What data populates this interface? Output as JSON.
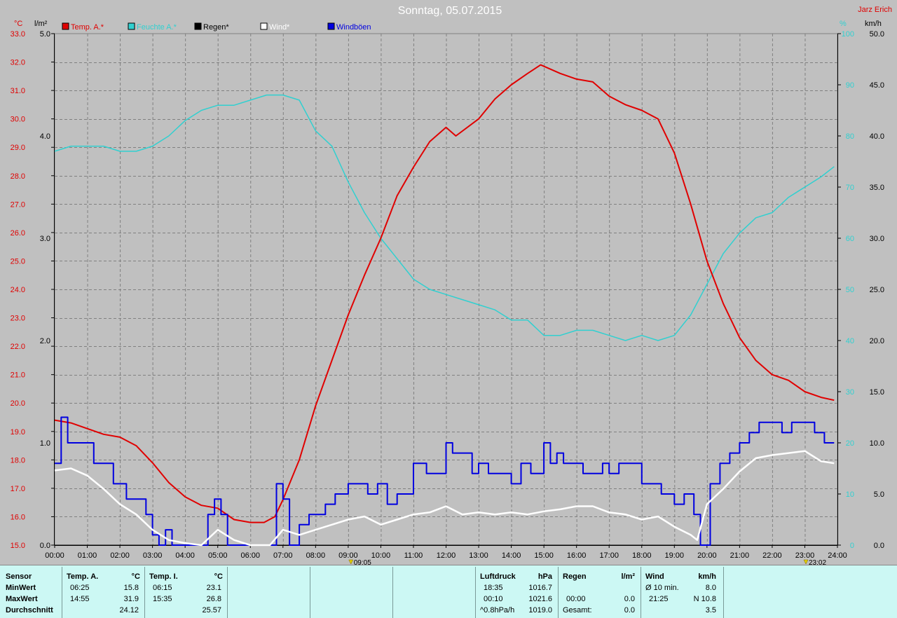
{
  "header": {
    "title": "Sonntag, 05.07.2015",
    "author": "Jarz Erich"
  },
  "colors": {
    "background": "#c0c0c0",
    "temp": "#e00000",
    "humidity": "#30d0d0",
    "rain": "#000000",
    "wind": "#ffffff",
    "gust": "#0000e0",
    "panel": "#ccf8f4"
  },
  "legend": [
    {
      "label": "Temp. A.*",
      "color": "#e00000"
    },
    {
      "label": "Feuchte A.*",
      "color": "#30d0d0"
    },
    {
      "label": "Regen*",
      "color": "#000000"
    },
    {
      "label": "Wind*",
      "color": "#ffffff"
    },
    {
      "label": "Windböen",
      "color": "#0000e0"
    }
  ],
  "axes": {
    "temp_unit": "°C",
    "rain_unit": "l/m²",
    "hum_unit": "%",
    "wind_unit": "km/h",
    "temp_ticks": [
      "15.0",
      "16.0",
      "17.0",
      "18.0",
      "19.0",
      "20.0",
      "21.0",
      "22.0",
      "23.0",
      "24.0",
      "25.0",
      "26.0",
      "27.0",
      "28.0",
      "29.0",
      "30.0",
      "31.0",
      "32.0",
      "33.0"
    ],
    "rain_ticks": [
      "0.0",
      "1.0",
      "2.0",
      "3.0",
      "4.0",
      "5.0"
    ],
    "hum_ticks": [
      "0",
      "10",
      "20",
      "30",
      "40",
      "50",
      "60",
      "70",
      "80",
      "90",
      "100"
    ],
    "wind_ticks": [
      "0.0",
      "5.0",
      "10.0",
      "15.0",
      "20.0",
      "25.0",
      "30.0",
      "35.0",
      "40.0",
      "45.0",
      "50.0"
    ],
    "time_ticks": [
      "00:00",
      "01:00",
      "02:00",
      "03:00",
      "04:00",
      "05:00",
      "06:00",
      "07:00",
      "08:00",
      "09:00",
      "10:00",
      "11:00",
      "12:00",
      "13:00",
      "14:00",
      "15:00",
      "16:00",
      "17:00",
      "18:00",
      "19:00",
      "20:00",
      "21:00",
      "22:00",
      "23:00",
      "24:00"
    ],
    "markers": [
      {
        "label": "09:05",
        "x": 9.083
      },
      {
        "label": "23:02",
        "x": 23.033
      }
    ]
  },
  "chart_data": {
    "type": "line",
    "title": "Sonntag, 05.07.2015",
    "x_label": "",
    "xlim": [
      0,
      24
    ],
    "ylim_temp": [
      15,
      33
    ],
    "ylim_rain": [
      0,
      5
    ],
    "ylim_hum": [
      0,
      100
    ],
    "ylim_wind": [
      0,
      50
    ],
    "grid": true,
    "legend_position": "top-left",
    "series": [
      {
        "name": "Temp. A.*",
        "axis": "temp",
        "x": [
          0,
          0.5,
          1,
          1.5,
          2,
          2.5,
          3,
          3.5,
          4,
          4.5,
          5,
          5.5,
          6,
          6.42,
          6.75,
          7,
          7.5,
          8,
          8.5,
          9,
          9.5,
          10,
          10.5,
          11,
          11.5,
          12,
          12.3,
          13,
          13.5,
          14,
          14.5,
          14.9,
          15.5,
          16,
          16.5,
          17,
          17.5,
          18,
          18.5,
          19,
          19.5,
          20,
          20.5,
          21,
          21.5,
          22,
          22.5,
          23,
          23.5,
          23.9
        ],
        "y": [
          19.4,
          19.3,
          19.1,
          18.9,
          18.8,
          18.5,
          17.9,
          17.2,
          16.7,
          16.4,
          16.3,
          15.9,
          15.8,
          15.8,
          16.0,
          16.6,
          18.0,
          19.9,
          21.5,
          23.1,
          24.5,
          25.8,
          27.3,
          28.3,
          29.2,
          29.7,
          29.4,
          30.0,
          30.7,
          31.2,
          31.6,
          31.9,
          31.6,
          31.4,
          31.3,
          30.8,
          30.5,
          30.3,
          30.0,
          28.8,
          27.0,
          25.0,
          23.5,
          22.3,
          21.5,
          21.0,
          20.8,
          20.4,
          20.2,
          20.1
        ]
      },
      {
        "name": "Feuchte A.*",
        "axis": "hum",
        "x": [
          0,
          0.5,
          1,
          1.5,
          2,
          2.5,
          3,
          3.5,
          4,
          4.5,
          5,
          5.5,
          6,
          6.5,
          7,
          7.5,
          8,
          8.5,
          9,
          9.5,
          10,
          10.5,
          11,
          11.5,
          12,
          12.5,
          13,
          13.5,
          14,
          14.5,
          15,
          15.5,
          16,
          16.5,
          17,
          17.5,
          18,
          18.5,
          19,
          19.5,
          20,
          20.5,
          21,
          21.5,
          22,
          22.5,
          23,
          23.5,
          23.9
        ],
        "y": [
          77,
          78,
          78,
          78,
          77,
          77,
          78,
          80,
          83,
          85,
          86,
          86,
          87,
          88,
          88,
          87,
          81,
          78,
          71,
          65,
          60,
          56,
          52,
          50,
          49,
          48,
          47,
          46,
          44,
          44,
          41,
          41,
          42,
          42,
          41,
          40,
          41,
          40,
          41,
          45,
          51,
          57,
          61,
          64,
          65,
          68,
          70,
          72,
          74
        ]
      },
      {
        "name": "Regen*",
        "axis": "rain",
        "x": [
          0,
          24
        ],
        "y": [
          0,
          0
        ]
      },
      {
        "name": "Wind*",
        "axis": "wind",
        "x": [
          0,
          0.5,
          1,
          1.5,
          2,
          2.5,
          3,
          3.5,
          4,
          4.5,
          5,
          5.5,
          6,
          6.3,
          6.6,
          7,
          7.5,
          8,
          8.5,
          9,
          9.5,
          10,
          10.5,
          11,
          11.5,
          12,
          12.5,
          13,
          13.5,
          14,
          14.5,
          15,
          15.5,
          16,
          16.5,
          17,
          17.5,
          18,
          18.5,
          19,
          19.5,
          19.7,
          20,
          20.5,
          21,
          21.5,
          22,
          22.5,
          23,
          23.5,
          23.9
        ],
        "y": [
          7.3,
          7.5,
          6.8,
          5.5,
          4.0,
          3.0,
          1.5,
          0.5,
          0.2,
          0.0,
          1.5,
          0.5,
          0.0,
          0.0,
          0.0,
          1.5,
          1.0,
          1.5,
          2.0,
          2.5,
          2.8,
          2.0,
          2.5,
          3.0,
          3.2,
          3.8,
          3.0,
          3.2,
          3.0,
          3.2,
          3.0,
          3.3,
          3.5,
          3.8,
          3.8,
          3.2,
          3.0,
          2.5,
          2.8,
          1.8,
          1.0,
          0.5,
          4.0,
          5.5,
          7.2,
          8.5,
          8.8,
          9.0,
          9.2,
          8.2,
          8.0
        ]
      },
      {
        "name": "Windböen",
        "axis": "wind",
        "x": [
          0,
          0.2,
          0.4,
          0.8,
          1,
          1.2,
          1.5,
          1.8,
          2,
          2.2,
          2.5,
          2.8,
          3,
          3.2,
          3.4,
          3.6,
          3.8,
          4,
          4.2,
          4.5,
          4.7,
          4.9,
          5.1,
          5.3,
          5.6,
          6,
          6.3,
          6.6,
          6.8,
          7,
          7.2,
          7.5,
          7.8,
          8,
          8.3,
          8.6,
          9,
          9.3,
          9.6,
          9.9,
          10.2,
          10.5,
          10.8,
          11,
          11.2,
          11.4,
          11.7,
          12,
          12.2,
          12.5,
          12.8,
          13,
          13.3,
          13.6,
          14,
          14.3,
          14.6,
          15,
          15.2,
          15.4,
          15.6,
          15.9,
          16.2,
          16.5,
          16.8,
          17,
          17.3,
          17.6,
          18,
          18.3,
          18.6,
          19,
          19.3,
          19.6,
          19.8,
          20.1,
          20.4,
          20.7,
          21,
          21.3,
          21.6,
          22,
          22.3,
          22.6,
          23,
          23.3,
          23.6,
          23.9
        ],
        "y": [
          8,
          12.5,
          10,
          10,
          10,
          8,
          8,
          6,
          6,
          4.5,
          4.5,
          3,
          1,
          0,
          1.5,
          0,
          0,
          0,
          0,
          0,
          3,
          4.5,
          3,
          0,
          0,
          0,
          0,
          0,
          6,
          4.5,
          0,
          2,
          3,
          3,
          4,
          5,
          6,
          6,
          5,
          6,
          4,
          5,
          5,
          8,
          8,
          7,
          7,
          10,
          9,
          9,
          7,
          8,
          7,
          7,
          6,
          8,
          7,
          10,
          8,
          9,
          8,
          8,
          7,
          7,
          8,
          7,
          8,
          8,
          6,
          6,
          5,
          4,
          5,
          3,
          0,
          6,
          8,
          9,
          10,
          11,
          12,
          12,
          11,
          12,
          12,
          11,
          10,
          10
        ]
      }
    ]
  },
  "panel": {
    "sensor": {
      "header": "Sensor",
      "rows": [
        "MinWert",
        "MaxWert",
        "Durchschnitt"
      ]
    },
    "temp_a": {
      "header": "Temp. A.",
      "unit": "°C",
      "rows": [
        {
          "time": "06:25",
          "value": "15.8"
        },
        {
          "time": "14:55",
          "value": "31.9"
        },
        {
          "time": "",
          "value": "24.12"
        }
      ]
    },
    "temp_i": {
      "header": "Temp. I.",
      "unit": "°C",
      "rows": [
        {
          "time": "06:15",
          "value": "23.1"
        },
        {
          "time": "15:35",
          "value": "26.8"
        },
        {
          "time": "",
          "value": "25.57"
        }
      ]
    },
    "pressure": {
      "header": "Luftdruck",
      "unit": "hPa",
      "rows": [
        {
          "time": "18:35",
          "value": "1016.7"
        },
        {
          "time": "00:10",
          "value": "1021.6"
        },
        {
          "time": "^0.8hPa/h",
          "value": "1019.0"
        }
      ]
    },
    "rain": {
      "header": "Regen",
      "unit": "l/m²",
      "rows": [
        {
          "time": "",
          "value": ""
        },
        {
          "time": "00:00",
          "value": "0.0"
        },
        {
          "time": "Gesamt:",
          "value": "0.0"
        }
      ]
    },
    "wind": {
      "header": "Wind",
      "unit": "km/h",
      "rows": [
        {
          "time": "Ø 10 min.",
          "value": "8.0"
        },
        {
          "time": "21:25",
          "value": "N 10.8"
        },
        {
          "time": "",
          "value": "3.5"
        }
      ]
    }
  }
}
